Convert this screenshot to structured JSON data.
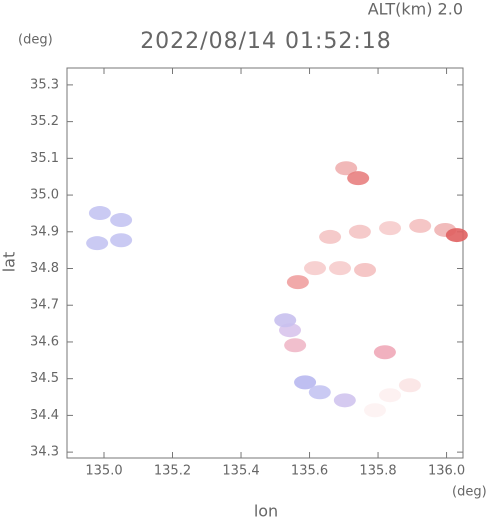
{
  "chart_data": {
    "type": "scatter",
    "title": "2022/08/14 01:52:18",
    "subtitle": "ALT(km) 2.0",
    "xlabel": "lon",
    "ylabel": "lat",
    "x_unit": "(deg)",
    "y_unit": "(deg)",
    "xlim": [
      134.892,
      136.048
    ],
    "ylim": [
      34.284,
      35.346
    ],
    "xticks": [
      {
        "value": 135,
        "label": "135.0"
      },
      135.2,
      135.4,
      135.6,
      135.8,
      {
        "value": 136,
        "label": "136.0"
      }
    ],
    "yticks": [
      34.3,
      34.4,
      34.5,
      34.6,
      34.7,
      34.8,
      34.9,
      {
        "value": 35,
        "label": "35.0"
      },
      35.1,
      35.2,
      35.3
    ],
    "x": [
      134.988,
      134.98,
      135.05,
      135.05,
      135.707,
      135.742,
      135.66,
      135.747,
      135.835,
      135.923,
      135.996,
      136.03,
      135.616,
      135.689,
      135.762,
      135.566,
      135.543,
      135.558,
      135.529,
      135.587,
      135.63,
      135.703,
      135.835,
      135.893,
      135.791,
      135.82
    ],
    "y": [
      34.951,
      34.869,
      34.877,
      34.932,
      35.073,
      35.046,
      34.886,
      34.9,
      34.91,
      34.916,
      34.905,
      34.891,
      34.801,
      34.801,
      34.796,
      34.763,
      34.632,
      34.591,
      34.659,
      34.49,
      34.463,
      34.441,
      34.455,
      34.482,
      34.414,
      34.572
    ],
    "colors": [
      "#c4c4f2",
      "#c4c4f2",
      "#c4c4f2",
      "#c4c4f2",
      "#f0b0b0",
      "#e88080",
      "#f4c4c4",
      "#f4c4c4",
      "#f6cccc",
      "#f4c0c0",
      "#f0b4b4",
      "#e06060",
      "#f6cccc",
      "#f6cccc",
      "#f4c0c0",
      "#f0a0a0",
      "#d8c4ec",
      "#f0b8c8",
      "#c8c0ee",
      "#b8b8f0",
      "#c4c4f2",
      "#d0c4ee",
      "#fdf0f0",
      "#fbe4e4",
      "#fdf2f2",
      "#f0a8b8"
    ]
  }
}
